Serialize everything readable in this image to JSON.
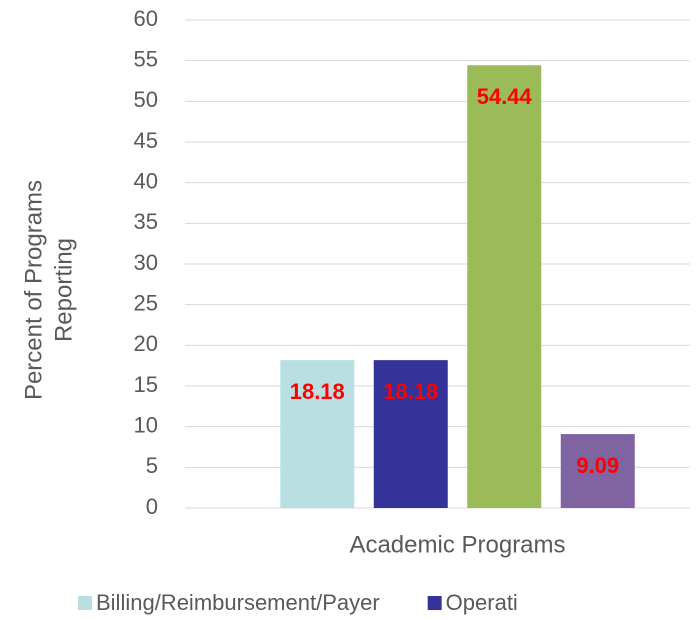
{
  "chart_data": {
    "type": "bar",
    "ylabel": [
      "Percent of Programs",
      "Reporting"
    ],
    "categories": [
      "Academic Programs"
    ],
    "series": [
      {
        "name": "Billing/Reimbursement/Payer",
        "color": "#b9dfe2",
        "values": [
          18.18
        ]
      },
      {
        "name": "Operati",
        "color": "#333399",
        "values": [
          18.18
        ]
      },
      {
        "color": "#9bbb59",
        "values": [
          54.44
        ]
      },
      {
        "color": "#8064a2",
        "values": [
          9.09
        ]
      }
    ],
    "ylim": [
      0,
      60
    ],
    "yticks": [
      0,
      5,
      10,
      15,
      20,
      25,
      30,
      35,
      40,
      45,
      50,
      55,
      60
    ],
    "grid": true,
    "legend": "bottom",
    "data_label_color": "#ff0000"
  }
}
